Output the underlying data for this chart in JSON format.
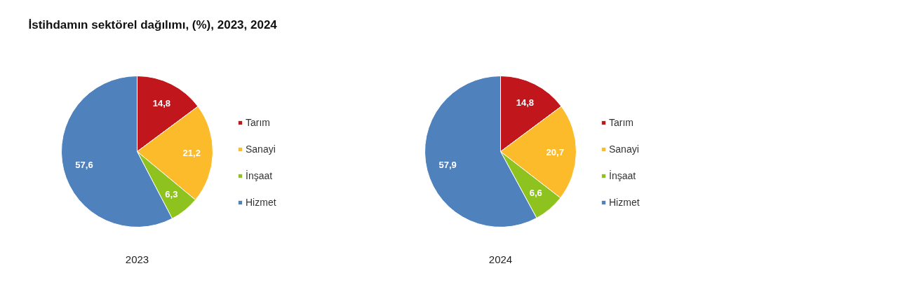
{
  "chart_data": [
    {
      "type": "pie",
      "title": "İstihdamın sektörel dağılımı, (%), 2023, 2024",
      "xlabel": "2023",
      "categories": [
        "Tarım",
        "Sanayi",
        "İnşaat",
        "Hizmet"
      ],
      "values": [
        14.8,
        21.2,
        6.3,
        57.6
      ],
      "value_labels": [
        "14,8",
        "21,2",
        "6,3",
        "57,6"
      ],
      "colors": [
        "#c0161c",
        "#fbbb2b",
        "#8ec21e",
        "#4f81bd"
      ],
      "legend": "right"
    },
    {
      "type": "pie",
      "xlabel": "2024",
      "categories": [
        "Tarım",
        "Sanayi",
        "İnşaat",
        "Hizmet"
      ],
      "values": [
        14.8,
        20.7,
        6.6,
        57.9
      ],
      "value_labels": [
        "14,8",
        "20,7",
        "6,6",
        "57,9"
      ],
      "colors": [
        "#c0161c",
        "#fbbb2b",
        "#8ec21e",
        "#4f81bd"
      ],
      "legend": "right"
    }
  ]
}
